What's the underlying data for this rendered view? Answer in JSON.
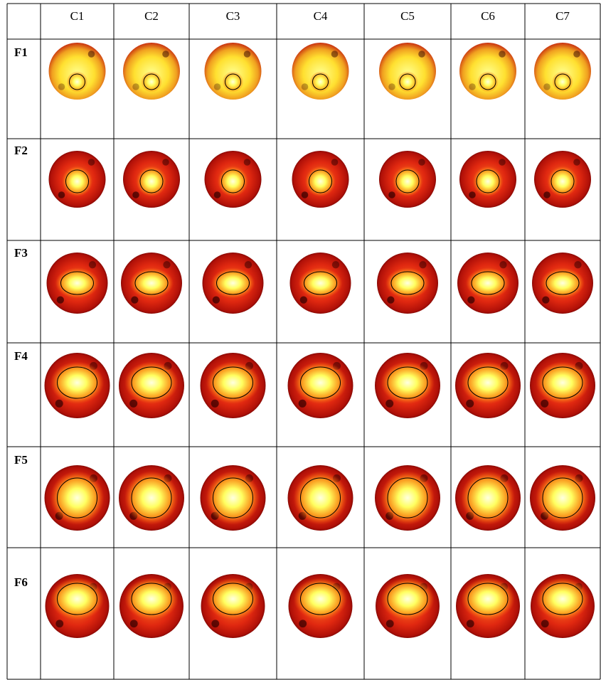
{
  "table": {
    "columns": [
      "C1",
      "C2",
      "C3",
      "C4",
      "C5",
      "C6",
      "C7"
    ],
    "rows": [
      "F1",
      "F2",
      "F3",
      "F4",
      "F5",
      "F6"
    ]
  }
}
